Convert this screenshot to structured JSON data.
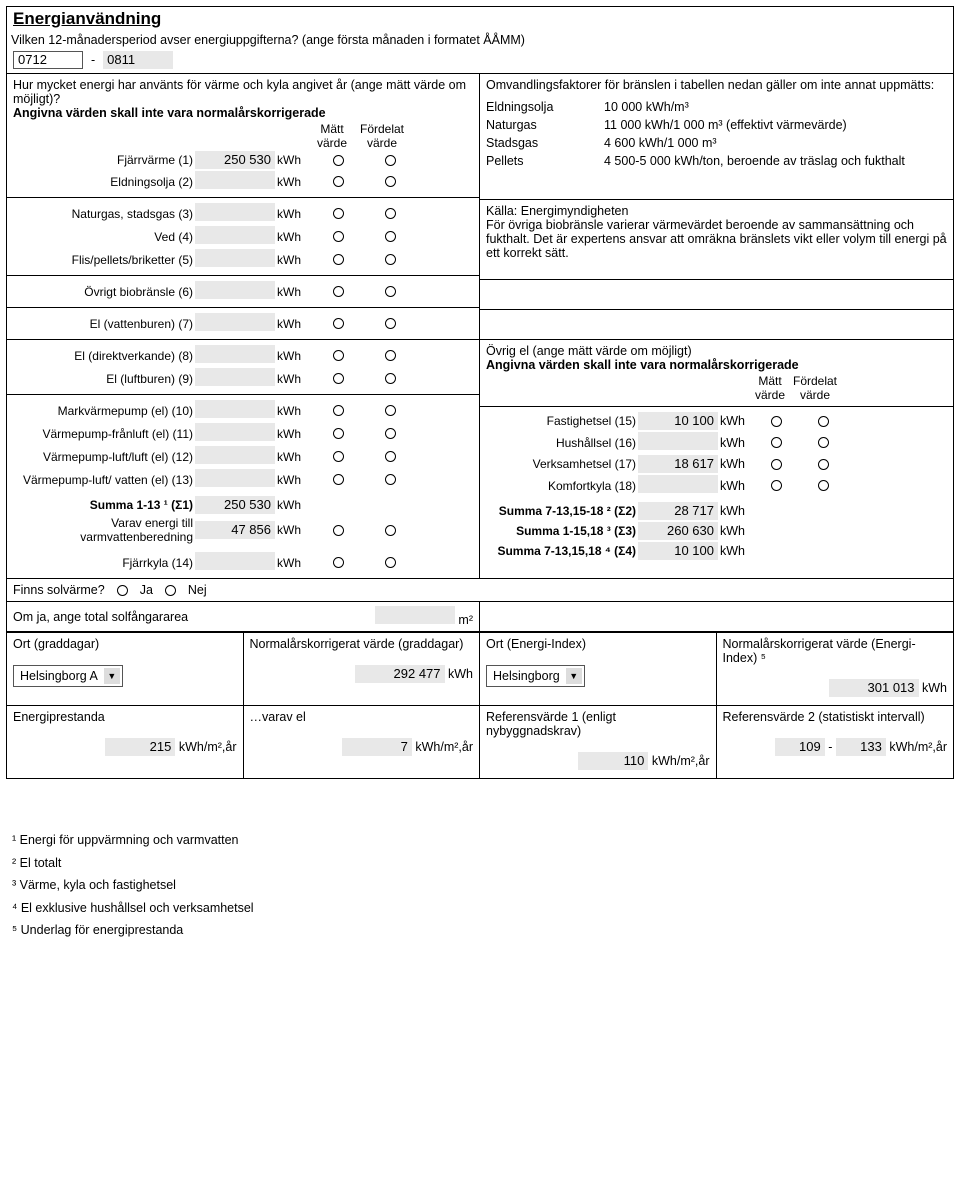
{
  "title": "Energianvändning",
  "intro": "Vilken 12-månadersperiod avser energiuppgifterna? (ange första månaden i formatet ÅÅMM)",
  "period": {
    "from": "0712",
    "dash": "-",
    "to": "0811"
  },
  "q2": "Hur mycket energi har använts för värme och kyla angivet år (ange mätt värde om möjligt)?",
  "note_norm": "Angivna värden skall inte vara normalårskorrigerade",
  "col_hdr": {
    "matt": "Mätt",
    "varde": "värde",
    "fordelat": "Fördelat"
  },
  "rows": [
    {
      "label": "Fjärrvärme (1)",
      "value": "250 530",
      "unit": "kWh"
    },
    {
      "label": "Eldningsolja (2)",
      "value": "",
      "unit": "kWh"
    },
    {
      "label": "Naturgas, stadsgas (3)",
      "value": "",
      "unit": "kWh"
    },
    {
      "label": "Ved (4)",
      "value": "",
      "unit": "kWh"
    },
    {
      "label": "Flis/pellets/briketter (5)",
      "value": "",
      "unit": "kWh"
    },
    {
      "label": "Övrigt biobränsle (6)",
      "value": "",
      "unit": "kWh"
    },
    {
      "label": "El (vattenburen) (7)",
      "value": "",
      "unit": "kWh"
    },
    {
      "label": "El (direktverkande) (8)",
      "value": "",
      "unit": "kWh"
    },
    {
      "label": "El (luftburen) (9)",
      "value": "",
      "unit": "kWh"
    },
    {
      "label": "Markvärmepump (el) (10)",
      "value": "",
      "unit": "kWh"
    },
    {
      "label": "Värmepump-frånluft (el) (11)",
      "value": "",
      "unit": "kWh"
    },
    {
      "label": "Värmepump-luft/luft (el) (12)",
      "value": "",
      "unit": "kWh"
    },
    {
      "label": "Värmepump-luft/ vatten (el) (13)",
      "value": "",
      "unit": "kWh"
    }
  ],
  "sum1_label": "Summa 1-13 ¹ (Σ1)",
  "sum1_value": "250 530",
  "varav_label": "Varav energi till varmvattenberedning",
  "varav_value": "47 856",
  "fjarrkyla": {
    "label": "Fjärrkyla (14)",
    "value": "",
    "unit": "kWh"
  },
  "right_top": {
    "intro": "Omvandlingsfaktorer för bränslen i tabellen nedan gäller om inte annat uppmätts:",
    "lines": [
      {
        "l": "Eldningsolja",
        "r": "10 000 kWh/m³"
      },
      {
        "l": "Naturgas",
        "r": "11 000 kWh/1 000 m³ (effektivt värmevärde)"
      },
      {
        "l": "Stadsgas",
        "r": "4 600 kWh/1 000 m³"
      },
      {
        "l": "Pellets",
        "r": "4 500-5 000 kWh/ton, beroende av träslag och fukthalt"
      }
    ],
    "source": "Källa: Energimyndigheten",
    "note": "För övriga biobränsle varierar värmevärdet beroende av sammansättning och fukthalt. Det är expertens ansvar att omräkna bränslets vikt eller volym till energi på ett korrekt sätt."
  },
  "ovrig_el": {
    "title": "Övrig el (ange mätt värde om möjligt)",
    "note": "Angivna värden skall inte vara normalårskorrigerade",
    "rows": [
      {
        "label": "Fastighetsel (15)",
        "value": "10 100",
        "unit": "kWh",
        "radios": true
      },
      {
        "label": "Hushållsel (16)",
        "value": "",
        "unit": "kWh",
        "radios": true
      },
      {
        "label": "Verksamhetsel (17)",
        "value": "18 617",
        "unit": "kWh",
        "radios": true
      },
      {
        "label": "Komfortkyla (18)",
        "value": "",
        "unit": "kWh",
        "radios": true
      }
    ],
    "sums": [
      {
        "label": "Summa 7-13,15-18 ² (Σ2)",
        "value": "28 717",
        "unit": "kWh"
      },
      {
        "label": "Summa 1-15,18 ³ (Σ3)",
        "value": "260 630",
        "unit": "kWh"
      },
      {
        "label": "Summa 7-13,15,18 ⁴ (Σ4)",
        "value": "10 100",
        "unit": "kWh"
      }
    ]
  },
  "solar": {
    "q": "Finns solvärme?",
    "ja": "Ja",
    "nej": "Nej",
    "q2": "Om ja, ange total solfångararea",
    "m2": "m²"
  },
  "bottom1": {
    "cells": [
      {
        "t": "Ort (graddagar)",
        "sel": "Helsingborg A"
      },
      {
        "t": "Normalårskorrigerat värde (graddagar)",
        "v": "292 477",
        "u": "kWh"
      },
      {
        "t": "Ort (Energi-Index)",
        "sel": "Helsingborg"
      },
      {
        "t": "Normalårskorrigerat värde (Energi-Index) ⁵",
        "v": "301 013",
        "u": "kWh"
      }
    ]
  },
  "bottom2": {
    "cells": [
      {
        "t": "Energiprestanda",
        "v": "215",
        "u": "kWh/m²,år"
      },
      {
        "t": "…varav el",
        "v": "7",
        "u": "kWh/m²,år"
      },
      {
        "t": "Referensvärde 1 (enligt nybyggnadskrav)",
        "v": "110",
        "u": "kWh/m²,år"
      },
      {
        "t": "Referensvärde 2 (statistiskt intervall)",
        "v1": "109",
        "dash": "-",
        "v2": "133",
        "u": "kWh/m²,år"
      }
    ]
  },
  "footnotes": [
    "¹ Energi för uppvärmning och varmvatten",
    "² El totalt",
    "³ Värme, kyla och fastighetsel",
    "⁴ El exklusive hushållsel och verksamhetsel",
    "⁵ Underlag för energiprestanda"
  ]
}
